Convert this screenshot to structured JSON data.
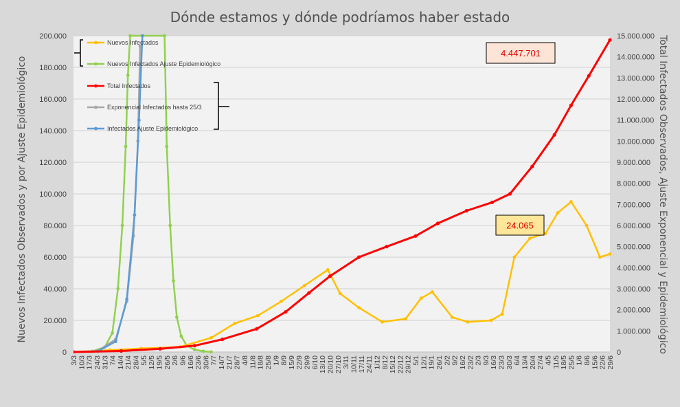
{
  "chart_data": {
    "type": "line",
    "title": "Dónde estamos y dónde podríamos haber estado",
    "ylabel_left": "Nuevos Infectados Observados y por Ajuste Epidemiológico",
    "ylabel_right": "Total Infectados Observados, Ajuste Exponencial y Epidemiológico",
    "ylim_left": [
      0,
      200000
    ],
    "ylim_right": [
      0,
      15000000
    ],
    "yticks_left": [
      "0",
      "20.000",
      "40.000",
      "60.000",
      "80.000",
      "100.000",
      "120.000",
      "140.000",
      "160.000",
      "180.000",
      "200.000"
    ],
    "yticks_right": [
      "0",
      "1.000.000",
      "2.000.000",
      "3.000.000",
      "4.000.000",
      "5.000.000",
      "6.000.000",
      "7.000.000",
      "8.000.000",
      "9.000.000",
      "10.000.000",
      "11.000.000",
      "12.000.000",
      "13.000.000",
      "14.000.000",
      "15.000.000"
    ],
    "x_start": "2020-03-03",
    "x_end": "2021-06-29",
    "x_tick_labels": [
      "3/3",
      "10/3",
      "17/3",
      "24/3",
      "31/3",
      "7/4",
      "14/4",
      "21/4",
      "28/4",
      "5/5",
      "12/5",
      "19/5",
      "26/5",
      "2/6",
      "9/6",
      "16/6",
      "23/6",
      "30/6",
      "7/7",
      "14/7",
      "21/7",
      "28/7",
      "4/8",
      "11/8",
      "18/8",
      "25/8",
      "1/9",
      "8/9",
      "15/9",
      "22/9",
      "29/9",
      "6/10",
      "13/10",
      "20/10",
      "27/10",
      "3/11",
      "10/11",
      "17/11",
      "24/11",
      "1/12",
      "8/12",
      "15/12",
      "22/12",
      "29/12",
      "5/1",
      "12/1",
      "19/1",
      "26/1",
      "2/2",
      "9/2",
      "16/2",
      "23/2",
      "2/3",
      "9/3",
      "16/3",
      "23/3",
      "30/3",
      "6/4",
      "13/4",
      "20/4",
      "27/4",
      "4/5",
      "11/5",
      "18/5",
      "25/5",
      "1/6",
      "8/6",
      "15/6",
      "22/6",
      "29/6"
    ],
    "grid": "horizontal",
    "legend_placement": "top-left",
    "series": [
      {
        "name": "Nuevos Infectados",
        "axis": "left",
        "color": "#ffc000",
        "dates": [
          "2020-03-03",
          "2020-04-05",
          "2020-05-03",
          "2020-06-07",
          "2020-07-05",
          "2020-07-26",
          "2020-08-16",
          "2020-09-06",
          "2020-09-27",
          "2020-10-18",
          "2020-10-29",
          "2020-11-15",
          "2020-12-06",
          "2020-12-27",
          "2021-01-10",
          "2021-01-20",
          "2021-02-07",
          "2021-02-21",
          "2021-03-14",
          "2021-03-24",
          "2021-04-04",
          "2021-04-18",
          "2021-05-02",
          "2021-05-13",
          "2021-05-25",
          "2021-06-08",
          "2021-06-20",
          "2021-06-29"
        ],
        "values": [
          0,
          1200,
          2200,
          3200,
          9000,
          18000,
          23000,
          32000,
          42000,
          52000,
          37000,
          28000,
          19000,
          21000,
          34000,
          38000,
          22000,
          19000,
          20000,
          24000,
          60000,
          72000,
          75000,
          88000,
          95000,
          80000,
          60000,
          62000
        ]
      },
      {
        "name": "Nuevos Infectados Ajuste Epidemiológico",
        "axis": "left",
        "color": "#92d050",
        "dates": [
          "2020-03-03",
          "2020-03-20",
          "2020-03-31",
          "2020-04-07",
          "2020-04-12",
          "2020-04-16",
          "2020-04-19",
          "2020-04-21",
          "2020-04-23",
          "2020-05-24",
          "2020-05-26",
          "2020-05-29",
          "2020-06-01",
          "2020-06-04",
          "2020-06-08",
          "2020-06-13",
          "2020-06-20",
          "2020-06-28",
          "2020-07-05"
        ],
        "values": [
          0,
          500,
          3000,
          12000,
          40000,
          80000,
          130000,
          175000,
          200000,
          200000,
          130000,
          80000,
          45000,
          22000,
          10000,
          4000,
          1500,
          500,
          0
        ]
      },
      {
        "name": "Total Infectados",
        "axis": "right",
        "color": "#ff0000",
        "dates": [
          "2020-03-03",
          "2020-04-15",
          "2020-05-20",
          "2020-06-20",
          "2020-07-15",
          "2020-08-15",
          "2020-09-10",
          "2020-10-01",
          "2020-10-20",
          "2020-11-15",
          "2020-12-10",
          "2021-01-05",
          "2021-01-25",
          "2021-02-20",
          "2021-03-15",
          "2021-03-31",
          "2021-04-20",
          "2021-05-10",
          "2021-05-25",
          "2021-06-10",
          "2021-06-29"
        ],
        "values": [
          0,
          50000,
          150000,
          300000,
          600000,
          1100000,
          1900000,
          2800000,
          3600000,
          4500000,
          5000000,
          5500000,
          6100000,
          6700000,
          7100000,
          7500000,
          8800000,
          10300000,
          11700000,
          13100000,
          14800000
        ]
      },
      {
        "name": "Exponencial Infectados hasta 25/3",
        "axis": "right",
        "color": "#a6a6a6",
        "dates": [
          "2020-03-03",
          "2020-03-25",
          "2020-04-10",
          "2020-04-20",
          "2020-04-26",
          "2020-04-30",
          "2020-05-02"
        ],
        "values": [
          0,
          56000,
          600000,
          2400000,
          5500000,
          10000000,
          14500000
        ]
      },
      {
        "name": "Infectados Ajuste Epidemiológico",
        "axis": "right",
        "color": "#5b9bd5",
        "dates": [
          "2020-03-03",
          "2020-03-25",
          "2020-04-10",
          "2020-04-20",
          "2020-04-27",
          "2020-05-01",
          "2020-05-04"
        ],
        "values": [
          0,
          40000,
          500000,
          2500000,
          6500000,
          11000000,
          15000000
        ]
      }
    ],
    "annotations": [
      {
        "text": "4.447.701",
        "fill": "#fce4d6"
      },
      {
        "text": "24.065",
        "fill": "#ffe699"
      }
    ]
  }
}
